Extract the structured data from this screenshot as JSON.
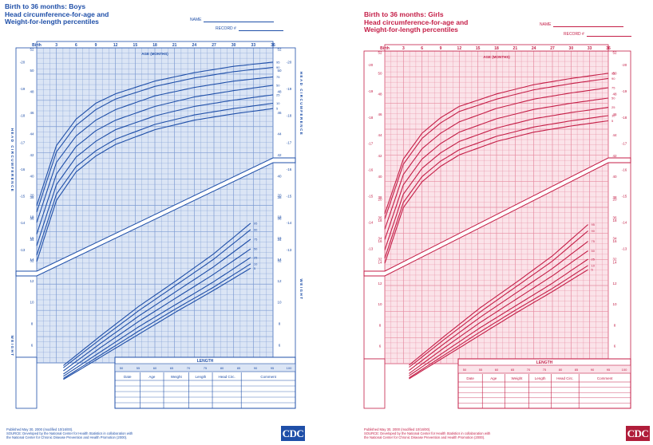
{
  "charts": [
    {
      "id": "boys",
      "title_lines": [
        "Birth to 36 months: Boys",
        "Head circumference-for-age and",
        "Weight-for-length percentiles"
      ],
      "name_label": "NAME",
      "record_label": "RECORD #",
      "age_axis_label": "AGE (MONTHS)",
      "length_axis_label": "LENGTH",
      "side_left_top": "HEAD CIRCUMFERENCE",
      "side_left_bottom": "WEIGHT",
      "side_right_top": "HEAD CIRCUMFERENCE",
      "side_right_bottom": "WEIGHT",
      "table_headers": [
        "Date",
        "Age",
        "Weight",
        "Length",
        "Head Circ.",
        "Comment"
      ],
      "footer_lines": [
        "Published May 30, 2000 (modified 10/16/00).",
        "SOURCE: Developed by the National Center for Health Statistics in collaboration with",
        "the National Center for Chronic Disease Prevention and Health Promotion (2000)."
      ],
      "logo_text": "CDC",
      "colors": {
        "line": "#1f4fa8",
        "grid": "#7d9bd2",
        "fill": "#dbe5f5",
        "text": "#1f4fa8"
      }
    },
    {
      "id": "girls",
      "title_lines": [
        "Birth to 36 months: Girls",
        "Head circumference-for-age and",
        "Weight-for-length percentiles"
      ],
      "name_label": "NAME",
      "record_label": "RECORD #",
      "age_axis_label": "AGE (MONTHS)",
      "length_axis_label": "LENGTH",
      "side_left_top": "",
      "side_left_bottom": "",
      "side_right_top": "",
      "side_right_bottom": "",
      "table_headers": [
        "Date",
        "Age",
        "Weight",
        "Length",
        "Head Circ.",
        "Comment"
      ],
      "footer_lines": [
        "Published May 30, 2000 (modified 10/16/00).",
        "SOURCE: Developed by the National Center for Health Statistics in collaboration with",
        "the National Center for Chronic Disease Prevention and Health Promotion (2000)."
      ],
      "logo_text": "CDC",
      "colors": {
        "line": "#c41e47",
        "grid": "#e58aa0",
        "fill": "#fbe3e9",
        "text": "#c41e47"
      }
    }
  ],
  "chart_data": [
    {
      "type": "line",
      "title": "Birth to 36 months: Boys Head circumference-for-age and Weight-for-length percentiles",
      "panel": "head_circumference_for_age",
      "xlabel": "AGE (MONTHS)",
      "ylabel": "HEAD CIRCUMFERENCE",
      "x_ticks": [
        "Birth",
        "3",
        "6",
        "9",
        "12",
        "15",
        "18",
        "21",
        "24",
        "27",
        "30",
        "33",
        "36"
      ],
      "y_ticks_cm": [
        32,
        34,
        36,
        38,
        40,
        42,
        44,
        46,
        48,
        50,
        52
      ],
      "y_ticks_in": [
        12,
        13,
        14,
        15,
        16,
        17,
        18,
        19,
        20
      ],
      "x": [
        0,
        3,
        6,
        9,
        12,
        18,
        24,
        30,
        36
      ],
      "series": [
        {
          "name": "95",
          "values": [
            37.2,
            42.9,
            45.4,
            46.9,
            47.8,
            49.0,
            49.8,
            50.4,
            50.8
          ]
        },
        {
          "name": "90",
          "values": [
            36.6,
            42.3,
            44.8,
            46.3,
            47.3,
            48.5,
            49.3,
            49.9,
            50.3
          ]
        },
        {
          "name": "75",
          "values": [
            35.6,
            41.3,
            43.8,
            45.3,
            46.3,
            47.6,
            48.4,
            49.0,
            49.4
          ]
        },
        {
          "name": "50",
          "values": [
            34.5,
            40.2,
            42.8,
            44.3,
            45.3,
            46.6,
            47.5,
            48.1,
            48.6
          ]
        },
        {
          "name": "25",
          "values": [
            33.4,
            39.2,
            41.8,
            43.3,
            44.4,
            45.7,
            46.6,
            47.2,
            47.7
          ]
        },
        {
          "name": "10",
          "values": [
            32.5,
            38.3,
            40.9,
            42.4,
            43.5,
            44.9,
            45.8,
            46.4,
            46.9
          ]
        },
        {
          "name": "5",
          "values": [
            31.9,
            37.7,
            40.4,
            41.9,
            43.0,
            44.4,
            45.3,
            45.9,
            46.4
          ]
        }
      ]
    },
    {
      "type": "line",
      "title": "Birth to 36 months: Boys Head circumference-for-age and Weight-for-length percentiles",
      "panel": "weight_for_length",
      "xlabel": "LENGTH",
      "ylabel": "WEIGHT",
      "x_ticks_cm": [
        50,
        55,
        60,
        65,
        70,
        75,
        80,
        85,
        90,
        95,
        100
      ],
      "y_ticks_kg": [
        2,
        4,
        6,
        8,
        10,
        12,
        14,
        16,
        18,
        20,
        22,
        24
      ],
      "x": [
        50,
        60,
        70,
        80,
        90,
        100
      ],
      "series": [
        {
          "name": "95",
          "values": [
            4.1,
            6.9,
            9.6,
            12.0,
            14.5,
            17.4
          ]
        },
        {
          "name": "90",
          "values": [
            3.9,
            6.6,
            9.2,
            11.6,
            14.0,
            16.8
          ]
        },
        {
          "name": "75",
          "values": [
            3.6,
            6.2,
            8.7,
            11.0,
            13.3,
            15.9
          ]
        },
        {
          "name": "50",
          "values": [
            3.3,
            5.8,
            8.2,
            10.4,
            12.6,
            15.0
          ]
        },
        {
          "name": "25",
          "values": [
            3.1,
            5.4,
            7.7,
            9.8,
            11.9,
            14.2
          ]
        },
        {
          "name": "10",
          "values": [
            2.9,
            5.1,
            7.3,
            9.4,
            11.4,
            13.6
          ]
        },
        {
          "name": "5",
          "values": [
            2.8,
            4.9,
            7.0,
            9.1,
            11.1,
            13.2
          ]
        }
      ]
    },
    {
      "type": "line",
      "title": "Birth to 36 months: Girls Head circumference-for-age and Weight-for-length percentiles",
      "panel": "head_circumference_for_age",
      "xlabel": "AGE (MONTHS)",
      "ylabel": "",
      "x_ticks": [
        "Birth",
        "3",
        "6",
        "9",
        "12",
        "15",
        "18",
        "21",
        "24",
        "27",
        "30",
        "33",
        "36"
      ],
      "y_ticks_cm": [
        32,
        34,
        36,
        38,
        40,
        42,
        44,
        46,
        48,
        50,
        52
      ],
      "y_ticks_in": [
        12,
        13,
        14,
        15,
        16,
        17,
        18,
        19,
        20
      ],
      "x": [
        0,
        3,
        6,
        9,
        12,
        18,
        24,
        30,
        36
      ],
      "series": [
        {
          "name": "95",
          "values": [
            36.4,
            41.7,
            44.2,
            45.7,
            46.8,
            48.0,
            48.9,
            49.5,
            50.0
          ]
        },
        {
          "name": "90",
          "values": [
            35.9,
            41.2,
            43.7,
            45.2,
            46.3,
            47.5,
            48.4,
            49.0,
            49.5
          ]
        },
        {
          "name": "75",
          "values": [
            34.9,
            40.2,
            42.7,
            44.2,
            45.3,
            46.6,
            47.5,
            48.1,
            48.6
          ]
        },
        {
          "name": "50",
          "values": [
            33.9,
            39.2,
            41.7,
            43.2,
            44.3,
            45.6,
            46.5,
            47.1,
            47.6
          ]
        },
        {
          "name": "25",
          "values": [
            32.9,
            38.3,
            40.8,
            42.3,
            43.4,
            44.7,
            45.6,
            46.2,
            46.7
          ]
        },
        {
          "name": "10",
          "values": [
            32.1,
            37.5,
            40.0,
            41.5,
            42.6,
            43.9,
            44.8,
            45.4,
            45.9
          ]
        },
        {
          "name": "5",
          "values": [
            31.6,
            37.0,
            39.5,
            41.0,
            42.1,
            43.4,
            44.3,
            44.9,
            45.4
          ]
        }
      ]
    },
    {
      "type": "line",
      "title": "Birth to 36 months: Girls Head circumference-for-age and Weight-for-length percentiles",
      "panel": "weight_for_length",
      "xlabel": "LENGTH",
      "ylabel": "",
      "x_ticks_cm": [
        50,
        55,
        60,
        65,
        70,
        75,
        80,
        85,
        90,
        95,
        100
      ],
      "y_ticks_kg": [
        2,
        4,
        6,
        8,
        10,
        12,
        14,
        16,
        18,
        20,
        22,
        24
      ],
      "x": [
        50,
        60,
        70,
        80,
        90,
        100
      ],
      "series": [
        {
          "name": "95",
          "values": [
            4.2,
            7.0,
            9.7,
            12.1,
            14.6,
            17.6
          ]
        },
        {
          "name": "90",
          "values": [
            4.0,
            6.7,
            9.3,
            11.7,
            14.1,
            17.0
          ]
        },
        {
          "name": "75",
          "values": [
            3.7,
            6.3,
            8.8,
            11.1,
            13.4,
            16.0
          ]
        },
        {
          "name": "50",
          "values": [
            3.4,
            5.9,
            8.3,
            10.5,
            12.7,
            15.1
          ]
        },
        {
          "name": "25",
          "values": [
            3.2,
            5.5,
            7.8,
            9.9,
            12.0,
            14.3
          ]
        },
        {
          "name": "10",
          "values": [
            3.0,
            5.2,
            7.4,
            9.5,
            11.5,
            13.7
          ]
        },
        {
          "name": "5",
          "values": [
            2.9,
            5.0,
            7.1,
            9.2,
            11.2,
            13.3
          ]
        }
      ]
    }
  ]
}
